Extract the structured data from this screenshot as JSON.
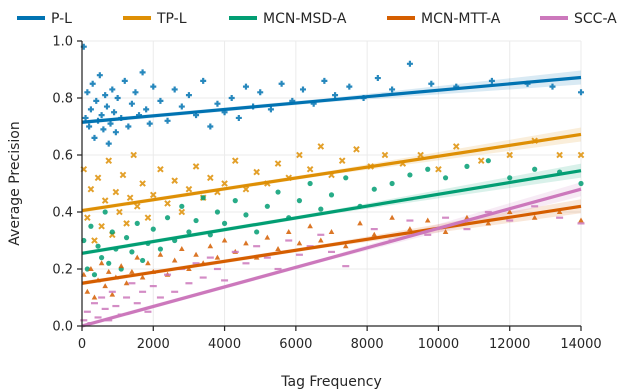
{
  "chart_data": {
    "type": "scatter",
    "xlabel": "Tag Frequency",
    "ylabel": "Average Precision",
    "xlim": [
      0,
      14000
    ],
    "ylim": [
      0.0,
      1.0
    ],
    "x_ticks": [
      0,
      2000,
      4000,
      6000,
      8000,
      10000,
      12000,
      14000
    ],
    "x_tick_labels": [
      "0",
      "2000",
      "4000",
      "6000",
      "8000",
      "10000",
      "12000",
      "14000"
    ],
    "y_ticks": [
      0.0,
      0.2,
      0.4,
      0.6,
      0.8,
      1.0
    ],
    "y_tick_labels": [
      "0.0",
      "0.2",
      "0.4",
      "0.6",
      "0.8",
      "1.0"
    ],
    "grid": true,
    "legend_position": "top",
    "series": [
      {
        "name": "P-L",
        "color": "#0173b2",
        "marker": "plus",
        "fit": [
          [
            0,
            0.715
          ],
          [
            14000,
            0.872
          ]
        ],
        "points": [
          [
            50,
            0.98
          ],
          [
            100,
            0.73
          ],
          [
            150,
            0.82
          ],
          [
            200,
            0.7
          ],
          [
            250,
            0.76
          ],
          [
            300,
            0.85
          ],
          [
            350,
            0.66
          ],
          [
            400,
            0.79
          ],
          [
            450,
            0.72
          ],
          [
            500,
            0.88
          ],
          [
            550,
            0.74
          ],
          [
            600,
            0.69
          ],
          [
            650,
            0.81
          ],
          [
            700,
            0.77
          ],
          [
            750,
            0.64
          ],
          [
            800,
            0.71
          ],
          [
            850,
            0.83
          ],
          [
            900,
            0.75
          ],
          [
            950,
            0.68
          ],
          [
            1000,
            0.8
          ],
          [
            1100,
            0.73
          ],
          [
            1200,
            0.86
          ],
          [
            1300,
            0.7
          ],
          [
            1400,
            0.78
          ],
          [
            1500,
            0.82
          ],
          [
            1600,
            0.74
          ],
          [
            1700,
            0.89
          ],
          [
            1800,
            0.76
          ],
          [
            1900,
            0.71
          ],
          [
            2000,
            0.84
          ],
          [
            2200,
            0.79
          ],
          [
            2400,
            0.72
          ],
          [
            2600,
            0.83
          ],
          [
            2800,
            0.77
          ],
          [
            3000,
            0.81
          ],
          [
            3200,
            0.74
          ],
          [
            3400,
            0.86
          ],
          [
            3600,
            0.7
          ],
          [
            3800,
            0.78
          ],
          [
            4000,
            0.75
          ],
          [
            4200,
            0.8
          ],
          [
            4400,
            0.73
          ],
          [
            4600,
            0.84
          ],
          [
            4800,
            0.77
          ],
          [
            5000,
            0.82
          ],
          [
            5300,
            0.76
          ],
          [
            5600,
            0.85
          ],
          [
            5900,
            0.79
          ],
          [
            6200,
            0.83
          ],
          [
            6500,
            0.78
          ],
          [
            6800,
            0.86
          ],
          [
            7100,
            0.81
          ],
          [
            7500,
            0.84
          ],
          [
            7900,
            0.8
          ],
          [
            8300,
            0.87
          ],
          [
            8700,
            0.83
          ],
          [
            9200,
            0.92
          ],
          [
            9800,
            0.85
          ],
          [
            10500,
            0.84
          ],
          [
            11500,
            0.86
          ],
          [
            12500,
            0.85
          ],
          [
            13200,
            0.84
          ],
          [
            14000,
            0.82
          ]
        ]
      },
      {
        "name": "TP-L",
        "color": "#de8f05",
        "marker": "x",
        "fit": [
          [
            0,
            0.405
          ],
          [
            14000,
            0.672
          ]
        ],
        "points": [
          [
            50,
            0.55
          ],
          [
            150,
            0.38
          ],
          [
            250,
            0.48
          ],
          [
            350,
            0.3
          ],
          [
            450,
            0.52
          ],
          [
            550,
            0.35
          ],
          [
            650,
            0.44
          ],
          [
            750,
            0.58
          ],
          [
            850,
            0.32
          ],
          [
            950,
            0.47
          ],
          [
            1050,
            0.4
          ],
          [
            1150,
            0.53
          ],
          [
            1250,
            0.36
          ],
          [
            1350,
            0.45
          ],
          [
            1450,
            0.6
          ],
          [
            1550,
            0.42
          ],
          [
            1700,
            0.5
          ],
          [
            1850,
            0.38
          ],
          [
            2000,
            0.46
          ],
          [
            2200,
            0.55
          ],
          [
            2400,
            0.43
          ],
          [
            2600,
            0.51
          ],
          [
            2800,
            0.4
          ],
          [
            3000,
            0.48
          ],
          [
            3200,
            0.56
          ],
          [
            3400,
            0.45
          ],
          [
            3600,
            0.52
          ],
          [
            3800,
            0.47
          ],
          [
            4000,
            0.5
          ],
          [
            4300,
            0.58
          ],
          [
            4600,
            0.48
          ],
          [
            4900,
            0.54
          ],
          [
            5200,
            0.5
          ],
          [
            5500,
            0.57
          ],
          [
            5800,
            0.52
          ],
          [
            6100,
            0.6
          ],
          [
            6400,
            0.55
          ],
          [
            6700,
            0.63
          ],
          [
            7000,
            0.53
          ],
          [
            7300,
            0.58
          ],
          [
            7700,
            0.62
          ],
          [
            8100,
            0.56
          ],
          [
            8500,
            0.6
          ],
          [
            9000,
            0.57
          ],
          [
            9500,
            0.6
          ],
          [
            10000,
            0.55
          ],
          [
            10500,
            0.63
          ],
          [
            11200,
            0.58
          ],
          [
            12000,
            0.6
          ],
          [
            12700,
            0.65
          ],
          [
            13400,
            0.6
          ],
          [
            14000,
            0.6
          ]
        ]
      },
      {
        "name": "MCN-MSD-A",
        "color": "#029e73",
        "marker": "circle",
        "fit": [
          [
            0,
            0.255
          ],
          [
            14000,
            0.545
          ]
        ],
        "points": [
          [
            50,
            0.3
          ],
          [
            150,
            0.2
          ],
          [
            250,
            0.35
          ],
          [
            350,
            0.18
          ],
          [
            450,
            0.28
          ],
          [
            550,
            0.24
          ],
          [
            650,
            0.4
          ],
          [
            750,
            0.22
          ],
          [
            850,
            0.33
          ],
          [
            950,
            0.27
          ],
          [
            1100,
            0.2
          ],
          [
            1250,
            0.31
          ],
          [
            1400,
            0.26
          ],
          [
            1550,
            0.36
          ],
          [
            1700,
            0.23
          ],
          [
            1850,
            0.29
          ],
          [
            2000,
            0.34
          ],
          [
            2200,
            0.27
          ],
          [
            2400,
            0.38
          ],
          [
            2600,
            0.3
          ],
          [
            2800,
            0.42
          ],
          [
            3000,
            0.33
          ],
          [
            3200,
            0.37
          ],
          [
            3400,
            0.45
          ],
          [
            3600,
            0.32
          ],
          [
            3800,
            0.4
          ],
          [
            4000,
            0.36
          ],
          [
            4300,
            0.44
          ],
          [
            4600,
            0.39
          ],
          [
            4900,
            0.33
          ],
          [
            5200,
            0.42
          ],
          [
            5500,
            0.47
          ],
          [
            5800,
            0.38
          ],
          [
            6100,
            0.44
          ],
          [
            6400,
            0.5
          ],
          [
            6700,
            0.41
          ],
          [
            7000,
            0.46
          ],
          [
            7400,
            0.52
          ],
          [
            7800,
            0.42
          ],
          [
            8200,
            0.48
          ],
          [
            8700,
            0.5
          ],
          [
            9200,
            0.53
          ],
          [
            9700,
            0.55
          ],
          [
            10200,
            0.52
          ],
          [
            10800,
            0.56
          ],
          [
            11400,
            0.58
          ],
          [
            12000,
            0.52
          ],
          [
            12700,
            0.55
          ],
          [
            13400,
            0.54
          ],
          [
            14000,
            0.5
          ]
        ]
      },
      {
        "name": "MCN-MTT-A",
        "color": "#d55e00",
        "marker": "triangle",
        "fit": [
          [
            0,
            0.15
          ],
          [
            14000,
            0.42
          ]
        ],
        "points": [
          [
            50,
            0.18
          ],
          [
            150,
            0.12
          ],
          [
            250,
            0.2
          ],
          [
            350,
            0.1
          ],
          [
            450,
            0.16
          ],
          [
            550,
            0.22
          ],
          [
            650,
            0.14
          ],
          [
            750,
            0.19
          ],
          [
            850,
            0.11
          ],
          [
            950,
            0.17
          ],
          [
            1100,
            0.21
          ],
          [
            1250,
            0.15
          ],
          [
            1400,
            0.19
          ],
          [
            1550,
            0.24
          ],
          [
            1700,
            0.17
          ],
          [
            1850,
            0.22
          ],
          [
            2000,
            0.19
          ],
          [
            2200,
            0.25
          ],
          [
            2400,
            0.18
          ],
          [
            2600,
            0.23
          ],
          [
            2800,
            0.27
          ],
          [
            3000,
            0.2
          ],
          [
            3200,
            0.25
          ],
          [
            3400,
            0.22
          ],
          [
            3600,
            0.28
          ],
          [
            3800,
            0.24
          ],
          [
            4000,
            0.3
          ],
          [
            4300,
            0.26
          ],
          [
            4600,
            0.29
          ],
          [
            4900,
            0.24
          ],
          [
            5200,
            0.31
          ],
          [
            5500,
            0.27
          ],
          [
            5800,
            0.33
          ],
          [
            6100,
            0.29
          ],
          [
            6400,
            0.35
          ],
          [
            6700,
            0.3
          ],
          [
            7000,
            0.33
          ],
          [
            7400,
            0.28
          ],
          [
            7800,
            0.36
          ],
          [
            8200,
            0.32
          ],
          [
            8700,
            0.38
          ],
          [
            9200,
            0.34
          ],
          [
            9700,
            0.37
          ],
          [
            10200,
            0.33
          ],
          [
            10800,
            0.38
          ],
          [
            11400,
            0.36
          ],
          [
            12000,
            0.4
          ],
          [
            12700,
            0.38
          ],
          [
            13400,
            0.4
          ],
          [
            14000,
            0.37
          ]
        ]
      },
      {
        "name": "SCC-A",
        "color": "#cc78bc",
        "marker": "dash",
        "fit": [
          [
            0,
            0.0
          ],
          [
            14000,
            0.48
          ]
        ],
        "points": [
          [
            50,
            0.02
          ],
          [
            150,
            0.05
          ],
          [
            250,
            0.01
          ],
          [
            350,
            0.08
          ],
          [
            450,
            0.03
          ],
          [
            550,
            0.1
          ],
          [
            650,
            0.06
          ],
          [
            750,
            0.02
          ],
          [
            850,
            0.12
          ],
          [
            950,
            0.07
          ],
          [
            1100,
            0.04
          ],
          [
            1250,
            0.1
          ],
          [
            1400,
            0.15
          ],
          [
            1550,
            0.08
          ],
          [
            1700,
            0.12
          ],
          [
            1850,
            0.05
          ],
          [
            2000,
            0.14
          ],
          [
            2200,
            0.1
          ],
          [
            2400,
            0.18
          ],
          [
            2600,
            0.12
          ],
          [
            2800,
            0.2
          ],
          [
            3000,
            0.15
          ],
          [
            3200,
            0.22
          ],
          [
            3400,
            0.17
          ],
          [
            3600,
            0.24
          ],
          [
            3800,
            0.2
          ],
          [
            4000,
            0.16
          ],
          [
            4300,
            0.26
          ],
          [
            4600,
            0.22
          ],
          [
            4900,
            0.28
          ],
          [
            5200,
            0.24
          ],
          [
            5500,
            0.2
          ],
          [
            5800,
            0.3
          ],
          [
            6100,
            0.25
          ],
          [
            6400,
            0.28
          ],
          [
            6700,
            0.32
          ],
          [
            7000,
            0.26
          ],
          [
            7400,
            0.21
          ],
          [
            7800,
            0.3
          ],
          [
            8200,
            0.34
          ],
          [
            8700,
            0.3
          ],
          [
            9200,
            0.37
          ],
          [
            9700,
            0.32
          ],
          [
            10200,
            0.38
          ],
          [
            10800,
            0.34
          ],
          [
            11400,
            0.4
          ],
          [
            12000,
            0.37
          ],
          [
            12700,
            0.42
          ],
          [
            13400,
            0.38
          ],
          [
            14000,
            0.36
          ]
        ]
      }
    ]
  }
}
